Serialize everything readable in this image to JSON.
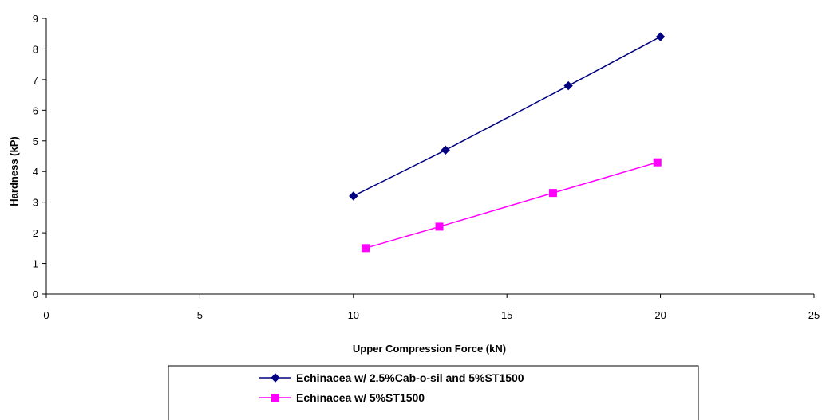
{
  "chart_data": {
    "type": "scatter",
    "title": "",
    "xlabel": "Upper Compression Force (kN)",
    "ylabel": "Hardness (kP)",
    "xlim": [
      0,
      25
    ],
    "ylim": [
      0,
      9
    ],
    "xticks": [
      0,
      5,
      10,
      15,
      20,
      25
    ],
    "yticks": [
      0,
      1,
      2,
      3,
      4,
      5,
      6,
      7,
      8,
      9
    ],
    "grid": false,
    "legend_placement": "bottom",
    "series": [
      {
        "name": "Echinacea w/ 2.5%Cab-o-sil and 5%ST1500",
        "color": "#000080",
        "marker": "diamond",
        "x": [
          10.0,
          13.0,
          17.0,
          20.0
        ],
        "y": [
          3.2,
          4.7,
          6.8,
          8.4
        ]
      },
      {
        "name": "Echinacea w/ 5%ST1500",
        "color": "#FF00FF",
        "marker": "square",
        "x": [
          10.4,
          12.8,
          16.5,
          19.9
        ],
        "y": [
          1.5,
          2.2,
          3.3,
          4.3
        ]
      }
    ]
  }
}
